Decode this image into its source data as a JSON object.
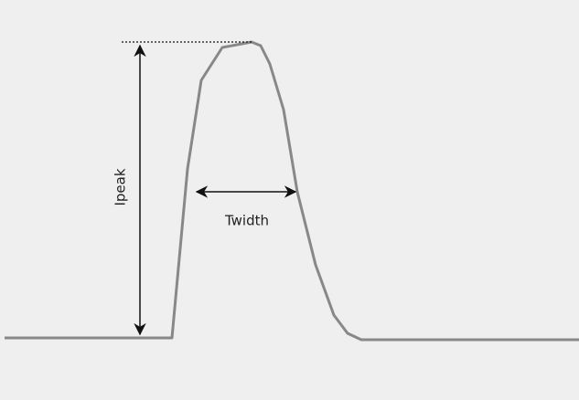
{
  "labels": {
    "peak": "Ipeak",
    "width": "Twidth"
  }
}
